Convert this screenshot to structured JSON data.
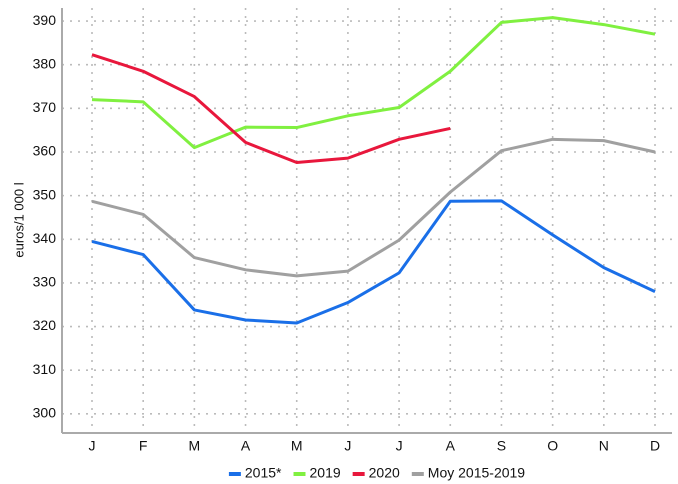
{
  "chart_data": {
    "type": "line",
    "y_label": "euros/1 000 l",
    "categories": [
      "J",
      "F",
      "M",
      "A",
      "M",
      "J",
      "J",
      "A",
      "S",
      "O",
      "N",
      "D"
    ],
    "series": [
      {
        "name": "2015*",
        "color": "#1a6fe8",
        "values": [
          339.5,
          336.5,
          323.8,
          321.5,
          320.8,
          325.5,
          332.3,
          348.7,
          348.8,
          341,
          333.5,
          328
        ]
      },
      {
        "name": "2019",
        "color": "#80f040",
        "values": [
          372,
          371.5,
          361,
          365.7,
          365.6,
          368.3,
          370.2,
          378.5,
          389.7,
          390.8,
          389.2,
          387
        ]
      },
      {
        "name": "2020",
        "color": "#e8173c",
        "values": [
          382.3,
          378.5,
          372.7,
          362.2,
          357.6,
          358.6,
          362.9,
          365.4,
          null,
          null,
          null,
          null
        ]
      },
      {
        "name": "Moy 2015-2019",
        "color": "#a0a0a0",
        "values": [
          348.7,
          345.7,
          335.8,
          333,
          331.6,
          332.7,
          339.8,
          350.8,
          360.3,
          362.9,
          362.6,
          360
        ]
      }
    ],
    "ylim": [
      295.6,
      393
    ],
    "yticks": [
      300,
      310,
      320,
      330,
      340,
      350,
      360,
      370,
      380,
      390
    ],
    "grid": true,
    "legend": "bottom"
  }
}
